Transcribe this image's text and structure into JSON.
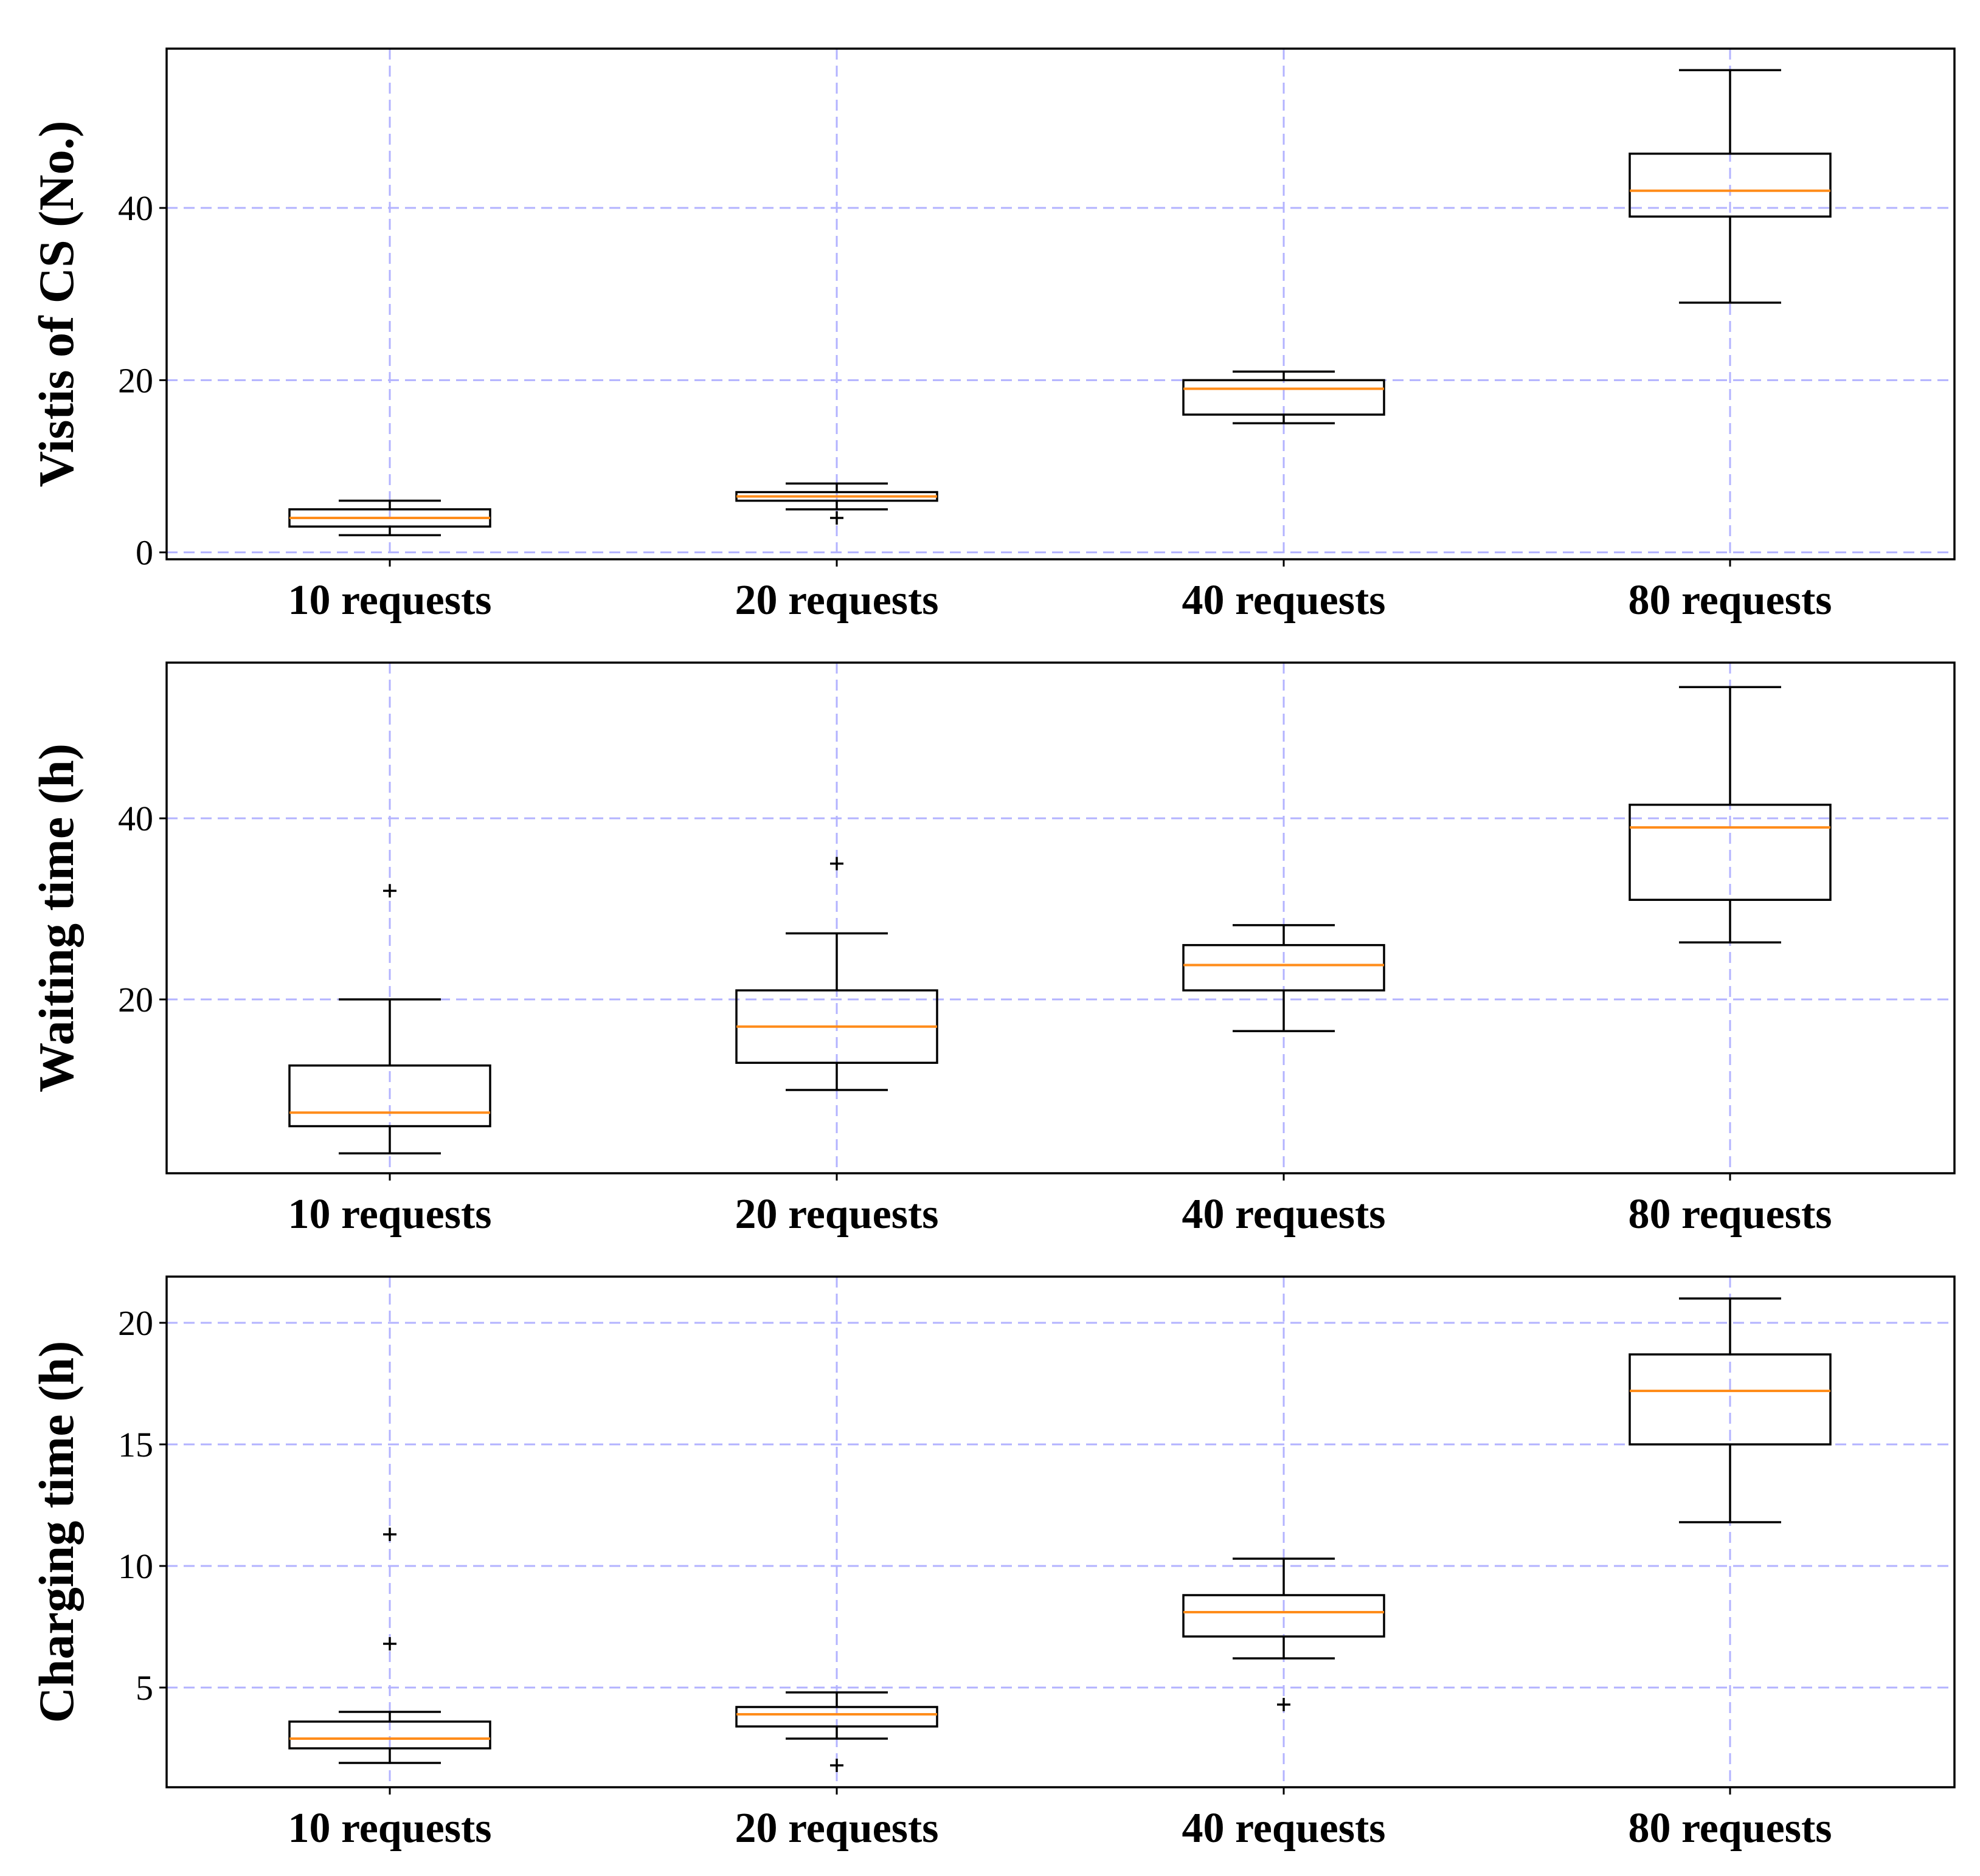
{
  "chart_data": [
    {
      "type": "box",
      "ylabel": "Vistis of CS (No.)",
      "categories": [
        "10 requests",
        "20 requests",
        "40 requests",
        "80 requests"
      ],
      "ylim": [
        -0.8,
        58.5
      ],
      "yticks": [
        0,
        20,
        40
      ],
      "grid": true,
      "boxes": [
        {
          "whislo": 2,
          "q1": 3,
          "med": 4,
          "q3": 5,
          "whishi": 6,
          "fliers": []
        },
        {
          "whislo": 5,
          "q1": 6,
          "med": 6.5,
          "q3": 7,
          "whishi": 8,
          "fliers": [
            4
          ]
        },
        {
          "whislo": 15,
          "q1": 16,
          "med": 19,
          "q3": 20,
          "whishi": 21,
          "fliers": []
        },
        {
          "whislo": 29,
          "q1": 39,
          "med": 42,
          "q3": 46.3,
          "whishi": 56,
          "fliers": []
        }
      ]
    },
    {
      "type": "box",
      "ylabel": "Waiting time (h)",
      "categories": [
        "10 requests",
        "20 requests",
        "40 requests",
        "80 requests"
      ],
      "ylim": [
        0.8,
        57.2
      ],
      "yticks": [
        20,
        40
      ],
      "grid": true,
      "boxes": [
        {
          "whislo": 3,
          "q1": 6,
          "med": 7.5,
          "q3": 12.7,
          "whishi": 20,
          "fliers": [
            32
          ]
        },
        {
          "whislo": 10,
          "q1": 13,
          "med": 17,
          "q3": 21,
          "whishi": 27.3,
          "fliers": [
            35
          ]
        },
        {
          "whislo": 16.5,
          "q1": 21,
          "med": 23.8,
          "q3": 26,
          "whishi": 28.2,
          "fliers": []
        },
        {
          "whislo": 26.3,
          "q1": 31,
          "med": 39,
          "q3": 41.5,
          "whishi": 54.5,
          "fliers": []
        }
      ]
    },
    {
      "type": "box",
      "ylabel": "Charging time (h)",
      "categories": [
        "10 requests",
        "20 requests",
        "40 requests",
        "80 requests"
      ],
      "ylim": [
        0.9,
        21.9
      ],
      "yticks": [
        5,
        10,
        15,
        20
      ],
      "grid": true,
      "boxes": [
        {
          "whislo": 1.9,
          "q1": 2.5,
          "med": 2.9,
          "q3": 3.6,
          "whishi": 4.0,
          "fliers": [
            6.8,
            11.3
          ]
        },
        {
          "whislo": 2.9,
          "q1": 3.4,
          "med": 3.9,
          "q3": 4.2,
          "whishi": 4.8,
          "fliers": [
            1.8
          ]
        },
        {
          "whislo": 6.2,
          "q1": 7.1,
          "med": 8.1,
          "q3": 8.8,
          "whishi": 10.3,
          "fliers": [
            4.3
          ]
        },
        {
          "whislo": 11.8,
          "q1": 15.0,
          "med": 17.2,
          "q3": 18.7,
          "whishi": 21.0,
          "fliers": []
        }
      ]
    }
  ]
}
